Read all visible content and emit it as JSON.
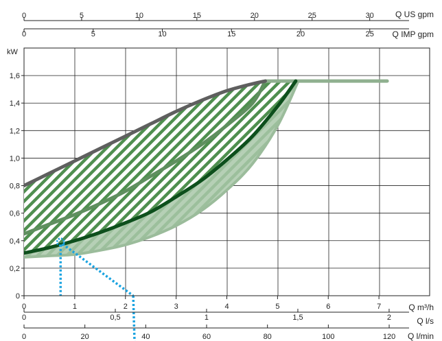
{
  "chart_data": {
    "type": "area",
    "ylabel": "kW",
    "ylim": [
      0,
      1.8
    ],
    "yticks": [
      "0",
      "0,2",
      "0,4",
      "0,6",
      "0,8",
      "1,0",
      "1,2",
      "1,4",
      "1,6"
    ],
    "grid": true,
    "axes": {
      "x_m3h": {
        "unit": "Q m³/h",
        "range": [
          0,
          8
        ],
        "ticks": [
          "0",
          "1",
          "2",
          "3",
          "4",
          "5",
          "6",
          "7"
        ]
      },
      "x_ls": {
        "unit": "Q l/s",
        "range": [
          0,
          2.222
        ],
        "ticks": [
          "0",
          "0,5",
          "1",
          "1,5",
          "2"
        ]
      },
      "x_lmin": {
        "unit": "Q l/min",
        "range": [
          0,
          133.3
        ],
        "ticks": [
          "0",
          "20",
          "40",
          "60",
          "80",
          "100",
          "120"
        ]
      },
      "top_us": {
        "unit": "Q US gpm",
        "range": [
          0,
          35.2
        ],
        "ticks": [
          "0",
          "5",
          "10",
          "15",
          "20",
          "25",
          "30"
        ]
      },
      "top_imp": {
        "unit": "Q IMP gpm",
        "range": [
          0,
          29.33
        ],
        "ticks": [
          "0",
          "5",
          "10",
          "15",
          "20",
          "25"
        ]
      }
    },
    "series": [
      {
        "role": "upper-bound",
        "color": "#5f5f5f",
        "x": [
          0,
          0.5,
          1,
          1.5,
          2,
          2.5,
          3,
          3.5,
          4,
          4.5,
          4.75
        ],
        "y": [
          0.8,
          0.89,
          0.98,
          1.07,
          1.16,
          1.25,
          1.34,
          1.42,
          1.49,
          1.54,
          1.56
        ]
      },
      {
        "role": "inner-boundary",
        "color": "#5f8f5f",
        "x": [
          0,
          0.5,
          1,
          1.5,
          2,
          2.5,
          3,
          3.5,
          4,
          4.5,
          4.75
        ],
        "y": [
          0.45,
          0.52,
          0.59,
          0.67,
          0.76,
          0.87,
          0.98,
          1.1,
          1.24,
          1.4,
          1.56
        ]
      },
      {
        "role": "flat-limit",
        "color": "#8fb08f",
        "x": [
          4.75,
          7.15
        ],
        "y": [
          1.56,
          1.56
        ]
      },
      {
        "role": "main-curve",
        "color": "#0d4f1c",
        "x": [
          0,
          0.5,
          1,
          1.5,
          2,
          2.5,
          3,
          3.5,
          4,
          4.5,
          5.0,
          5.35
        ],
        "y": [
          0.31,
          0.35,
          0.4,
          0.46,
          0.53,
          0.61,
          0.72,
          0.84,
          0.99,
          1.16,
          1.38,
          1.56
        ]
      },
      {
        "role": "lower-bound",
        "color": "#9bbc9b",
        "x": [
          0,
          0.5,
          1,
          1.5,
          2,
          2.5,
          3,
          3.5,
          4,
          4.5,
          5.0,
          5.4
        ],
        "y": [
          0.28,
          0.29,
          0.3,
          0.33,
          0.37,
          0.43,
          0.51,
          0.62,
          0.77,
          0.96,
          1.24,
          1.56
        ]
      }
    ],
    "marker": {
      "x": 0.72,
      "y": 0.39,
      "color": "#1aa3e0"
    }
  }
}
